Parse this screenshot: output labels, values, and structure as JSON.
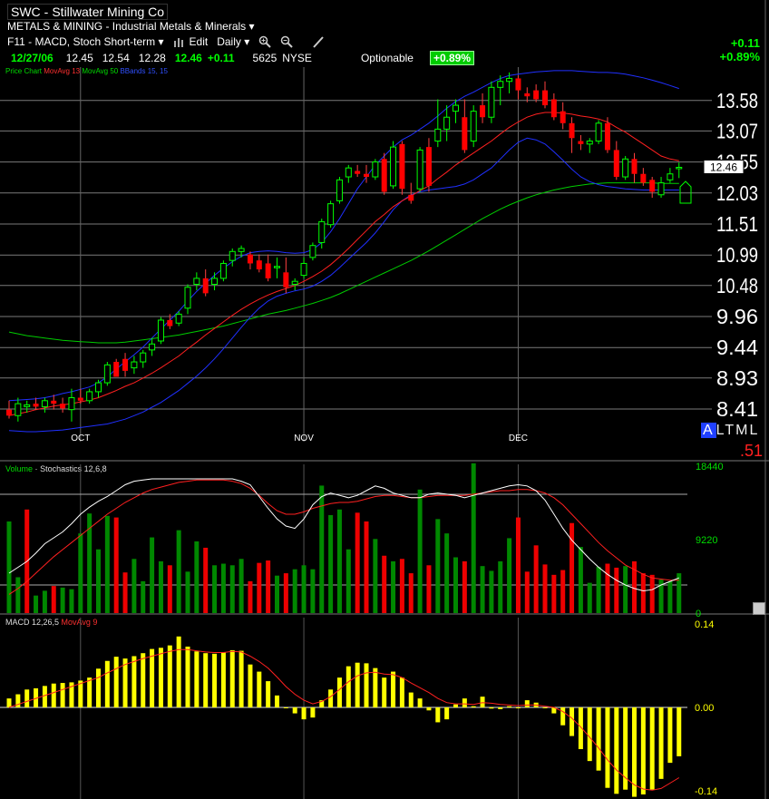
{
  "header": {
    "symbol": "SWC",
    "dash": "-",
    "company": "Stillwater Mining Co",
    "industry": "METALS & MINING - Industrial Metals & Minerals",
    "layout_name": "F11 - MACD, Stoch Short-term",
    "edit_label": "Edit",
    "period_label": "Daily",
    "date": "12/27/06",
    "open": "12.45",
    "high": "12.54",
    "low": "12.28",
    "last": "12.46",
    "change": "+0.11",
    "volume": "5625",
    "exchange": "NYSE",
    "optionable": "Optionable",
    "pct_badge": "+0.89%",
    "change_right": "+0.11",
    "pct_right": "+0.89%"
  },
  "legends": {
    "price_chart": "Price Chart",
    "ma13": "MovAvg 13",
    "ma50": "MovAvg 50",
    "bbands": "BBands 15, 15",
    "volume": "Volume",
    "stochastics": "Stochastics 12,6,8",
    "macd": "MACD 12,26,5",
    "macd_ma": "MovAvg 9"
  },
  "altml": {
    "a": "A",
    "rest": "LTML",
    "value": ".51"
  },
  "colors": {
    "up": "#00ff00",
    "down": "#ff0000",
    "ma13": "#ff2020",
    "ma50": "#00cc00",
    "bb": "#2030ff",
    "vol_up": "#008800",
    "vol_down": "#ee0000",
    "macd": "#ffff00"
  },
  "icons": [
    "chart-bars-icon",
    "zoom-in-icon",
    "zoom-out-icon",
    "pencil-icon",
    "arrow-down-icon"
  ],
  "chart_data": [
    {
      "type": "candlestick",
      "title": "Price Chart",
      "y_ticks": [
        "13.58",
        "13.07",
        "12.55",
        "12.03",
        "11.51",
        "10.99",
        "10.48",
        "9.96",
        "9.44",
        "8.93",
        "8.41"
      ],
      "ylim": [
        8.0,
        14.2
      ],
      "x_labels": [
        "OCT",
        "NOV",
        "DEC"
      ],
      "last_price_label": "12.46",
      "ohlc": [
        [
          8.4,
          8.55,
          8.25,
          8.3
        ],
        [
          8.3,
          8.6,
          8.2,
          8.5
        ],
        [
          8.45,
          8.55,
          8.35,
          8.48
        ],
        [
          8.5,
          8.6,
          8.4,
          8.45
        ],
        [
          8.45,
          8.6,
          8.35,
          8.55
        ],
        [
          8.55,
          8.65,
          8.4,
          8.5
        ],
        [
          8.5,
          8.6,
          8.35,
          8.42
        ],
        [
          8.4,
          8.75,
          8.2,
          8.6
        ],
        [
          8.6,
          8.75,
          8.5,
          8.55
        ],
        [
          8.55,
          8.75,
          8.5,
          8.7
        ],
        [
          8.7,
          8.9,
          8.6,
          8.85
        ],
        [
          8.85,
          9.2,
          8.8,
          9.15
        ],
        [
          9.2,
          9.25,
          9.0,
          8.95
        ],
        [
          9.25,
          9.35,
          8.95,
          9.05
        ],
        [
          9.1,
          9.3,
          9.0,
          9.2
        ],
        [
          9.2,
          9.4,
          9.1,
          9.35
        ],
        [
          9.4,
          9.6,
          9.3,
          9.5
        ],
        [
          9.55,
          9.95,
          9.5,
          9.9
        ],
        [
          9.9,
          10.0,
          9.75,
          9.8
        ],
        [
          9.85,
          10.05,
          9.8,
          10.0
        ],
        [
          10.1,
          10.5,
          10.0,
          10.45
        ],
        [
          10.5,
          10.7,
          10.4,
          10.6
        ],
        [
          10.6,
          10.75,
          10.3,
          10.35
        ],
        [
          10.5,
          10.7,
          10.4,
          10.6
        ],
        [
          10.6,
          10.9,
          10.55,
          10.85
        ],
        [
          10.9,
          11.1,
          10.8,
          11.05
        ],
        [
          11.05,
          11.15,
          10.95,
          11.1
        ],
        [
          11.0,
          11.05,
          10.75,
          10.85
        ],
        [
          10.9,
          11.0,
          10.7,
          10.75
        ],
        [
          10.85,
          11.0,
          10.55,
          10.6
        ],
        [
          10.8,
          10.95,
          10.6,
          10.8
        ],
        [
          10.7,
          10.95,
          10.35,
          10.45
        ],
        [
          10.5,
          10.6,
          10.4,
          10.55
        ],
        [
          10.65,
          10.95,
          10.6,
          10.85
        ],
        [
          10.95,
          11.2,
          10.9,
          11.15
        ],
        [
          11.2,
          11.6,
          11.1,
          11.55
        ],
        [
          11.5,
          11.9,
          11.45,
          11.85
        ],
        [
          11.9,
          12.3,
          11.85,
          12.25
        ],
        [
          12.3,
          12.5,
          12.2,
          12.45
        ],
        [
          12.4,
          12.5,
          12.3,
          12.35
        ],
        [
          12.35,
          12.5,
          12.2,
          12.3
        ],
        [
          12.3,
          12.6,
          12.25,
          12.55
        ],
        [
          12.6,
          12.7,
          12.0,
          12.05
        ],
        [
          12.15,
          12.9,
          12.1,
          12.8
        ],
        [
          12.85,
          12.9,
          12.0,
          12.1
        ],
        [
          12.0,
          12.2,
          11.85,
          11.9
        ],
        [
          12.1,
          12.8,
          12.05,
          12.75
        ],
        [
          12.8,
          12.95,
          12.05,
          12.15
        ],
        [
          12.9,
          13.6,
          12.8,
          13.1
        ],
        [
          13.1,
          13.5,
          12.9,
          13.3
        ],
        [
          13.4,
          13.6,
          13.2,
          13.5
        ],
        [
          13.3,
          13.6,
          12.7,
          12.75
        ],
        [
          12.9,
          13.5,
          12.8,
          13.4
        ],
        [
          13.5,
          13.7,
          13.2,
          13.3
        ],
        [
          13.3,
          13.9,
          13.2,
          13.8
        ],
        [
          13.8,
          14.0,
          13.5,
          13.9
        ],
        [
          13.9,
          14.05,
          13.7,
          13.95
        ],
        [
          13.95,
          14.0,
          13.6,
          13.75
        ],
        [
          13.7,
          13.8,
          13.55,
          13.65
        ],
        [
          13.75,
          13.85,
          13.55,
          13.6
        ],
        [
          13.75,
          13.9,
          13.45,
          13.5
        ],
        [
          13.6,
          13.7,
          13.25,
          13.3
        ],
        [
          13.4,
          13.55,
          13.1,
          13.2
        ],
        [
          13.2,
          13.3,
          12.7,
          12.95
        ],
        [
          12.9,
          13.0,
          12.75,
          12.85
        ],
        [
          12.85,
          12.95,
          12.7,
          12.9
        ],
        [
          12.9,
          13.25,
          12.85,
          13.2
        ],
        [
          13.2,
          13.3,
          12.7,
          12.75
        ],
        [
          12.75,
          12.9,
          12.25,
          12.3
        ],
        [
          12.3,
          12.65,
          12.25,
          12.6
        ],
        [
          12.6,
          12.7,
          12.2,
          12.35
        ],
        [
          12.35,
          12.45,
          12.15,
          12.2
        ],
        [
          12.25,
          12.3,
          11.95,
          12.05
        ],
        [
          12.0,
          12.3,
          11.95,
          12.2
        ],
        [
          12.25,
          12.45,
          12.2,
          12.35
        ],
        [
          12.45,
          12.54,
          12.28,
          12.46
        ]
      ],
      "ma13": [
        8.3,
        8.33,
        8.36,
        8.4,
        8.43,
        8.46,
        8.48,
        8.5,
        8.53,
        8.56,
        8.6,
        8.66,
        8.72,
        8.79,
        8.85,
        8.93,
        9.01,
        9.1,
        9.2,
        9.3,
        9.42,
        9.53,
        9.65,
        9.76,
        9.87,
        9.98,
        10.08,
        10.17,
        10.25,
        10.32,
        10.38,
        10.43,
        10.48,
        10.55,
        10.63,
        10.72,
        10.83,
        10.96,
        11.1,
        11.25,
        11.4,
        11.55,
        11.67,
        11.8,
        11.9,
        11.98,
        12.07,
        12.15,
        12.27,
        12.38,
        12.5,
        12.6,
        12.7,
        12.8,
        12.9,
        13.02,
        13.13,
        13.22,
        13.3,
        13.35,
        13.38,
        13.38,
        13.37,
        13.35,
        13.32,
        13.3,
        13.27,
        13.22,
        13.13,
        13.05,
        12.95,
        12.85,
        12.75,
        12.65,
        12.6,
        12.57
      ],
      "ma50": [
        9.7,
        9.67,
        9.64,
        9.62,
        9.6,
        9.58,
        9.56,
        9.55,
        9.54,
        9.53,
        9.52,
        9.52,
        9.52,
        9.53,
        9.55,
        9.57,
        9.59,
        9.61,
        9.63,
        9.65,
        9.68,
        9.71,
        9.74,
        9.77,
        9.8,
        9.84,
        9.88,
        9.92,
        9.96,
        10.0,
        10.03,
        10.06,
        10.1,
        10.14,
        10.18,
        10.23,
        10.28,
        10.34,
        10.41,
        10.48,
        10.55,
        10.62,
        10.69,
        10.76,
        10.83,
        10.9,
        10.98,
        11.06,
        11.15,
        11.24,
        11.33,
        11.42,
        11.51,
        11.6,
        11.68,
        11.76,
        11.83,
        11.89,
        11.95,
        12.0,
        12.04,
        12.08,
        12.11,
        12.14,
        12.16,
        12.18,
        12.19,
        12.2,
        12.2,
        12.2,
        12.2,
        12.2,
        12.2,
        12.19,
        12.19,
        12.19
      ],
      "bb_upper": [
        8.55,
        8.56,
        8.57,
        8.58,
        8.6,
        8.63,
        8.67,
        8.7,
        8.74,
        8.78,
        8.85,
        8.95,
        9.08,
        9.2,
        9.32,
        9.45,
        9.6,
        9.75,
        9.9,
        10.05,
        10.22,
        10.38,
        10.52,
        10.65,
        10.77,
        10.88,
        10.97,
        11.03,
        11.05,
        11.06,
        11.05,
        11.03,
        11.02,
        11.03,
        11.08,
        11.2,
        11.38,
        11.6,
        11.85,
        12.1,
        12.3,
        12.5,
        12.65,
        12.8,
        12.92,
        13.0,
        13.1,
        13.2,
        13.32,
        13.45,
        13.56,
        13.65,
        13.72,
        13.8,
        13.88,
        13.95,
        14.0,
        14.02,
        14.04,
        14.06,
        14.07,
        14.08,
        14.08,
        14.08,
        14.07,
        14.06,
        14.05,
        14.05,
        14.04,
        14.02,
        13.99,
        13.96,
        13.92,
        13.88,
        13.83,
        13.78
      ],
      "bb_lower": [
        8.05,
        8.04,
        8.03,
        8.03,
        8.04,
        8.05,
        8.06,
        8.08,
        8.1,
        8.12,
        8.14,
        8.16,
        8.2,
        8.24,
        8.3,
        8.36,
        8.44,
        8.52,
        8.62,
        8.72,
        8.84,
        8.96,
        9.1,
        9.25,
        9.42,
        9.6,
        9.78,
        9.95,
        10.1,
        10.22,
        10.3,
        10.35,
        10.39,
        10.42,
        10.47,
        10.55,
        10.65,
        10.78,
        10.92,
        11.06,
        11.2,
        11.36,
        11.55,
        11.75,
        11.9,
        12.0,
        12.05,
        12.08,
        12.1,
        12.12,
        12.14,
        12.18,
        12.25,
        12.35,
        12.45,
        12.6,
        12.75,
        12.88,
        12.95,
        12.92,
        12.85,
        12.72,
        12.58,
        12.43,
        12.3,
        12.22,
        12.17,
        12.14,
        12.12,
        12.1,
        12.09,
        12.08,
        12.08,
        12.08,
        12.08,
        12.08
      ]
    },
    {
      "type": "bar",
      "title": "Volume",
      "y_ticks": [
        "18440",
        "9220",
        "0"
      ],
      "ylim": [
        0,
        18440
      ],
      "values": [
        11500,
        4500,
        13000,
        2200,
        2800,
        3400,
        3200,
        3000,
        10000,
        12500,
        8000,
        12200,
        12000,
        5100,
        6800,
        4000,
        9500,
        6500,
        6000,
        10400,
        5200,
        9000,
        8200,
        6000,
        6200,
        6000,
        6800,
        4000,
        6300,
        6600,
        4700,
        5000,
        5500,
        6000,
        5500,
        16000,
        12300,
        13000,
        8000,
        12600,
        11500,
        9300,
        7200,
        6500,
        6800,
        5000,
        15500,
        6000,
        11800,
        10000,
        7000,
        6500,
        18800,
        5900,
        5300,
        6500,
        9400,
        12000,
        5200,
        8500,
        6100,
        4800,
        5400,
        11300,
        8300,
        3800,
        5800,
        6200,
        5700,
        5900,
        6500,
        5000,
        4800,
        4200,
        4000,
        5000
      ],
      "up": [
        true,
        true,
        false,
        true,
        true,
        false,
        true,
        true,
        true,
        true,
        true,
        true,
        false,
        false,
        true,
        true,
        true,
        true,
        false,
        true,
        true,
        true,
        false,
        true,
        true,
        true,
        true,
        false,
        false,
        false,
        true,
        false,
        true,
        true,
        true,
        true,
        true,
        true,
        true,
        false,
        false,
        true,
        false,
        true,
        false,
        false,
        true,
        false,
        true,
        true,
        true,
        false,
        true,
        true,
        true,
        true,
        true,
        false,
        false,
        false,
        false,
        false,
        false,
        false,
        true,
        true,
        true,
        false,
        false,
        true,
        false,
        false,
        false,
        true,
        true,
        true
      ],
      "stoch_k": [
        20,
        25,
        30,
        37,
        45,
        50,
        55,
        62,
        70,
        76,
        81,
        85,
        90,
        95,
        98,
        99,
        100,
        100,
        100,
        100,
        100,
        100,
        100,
        100,
        100,
        100,
        98,
        95,
        85,
        75,
        66,
        60,
        58,
        66,
        78,
        85,
        88,
        86,
        84,
        86,
        90,
        94,
        92,
        88,
        86,
        84,
        84,
        87,
        88,
        87,
        86,
        84,
        86,
        88,
        90,
        92,
        94,
        95,
        94,
        90,
        82,
        70,
        58,
        48,
        40,
        32,
        25,
        19,
        14,
        10,
        7,
        5,
        6,
        10,
        13,
        16
      ],
      "stoch_d": [
        2,
        7,
        13,
        20,
        27,
        34,
        40,
        46,
        52,
        58,
        64,
        70,
        75,
        80,
        84,
        88,
        91,
        93,
        95,
        97,
        98,
        99,
        99,
        99,
        99,
        98,
        96,
        92,
        86,
        79,
        73,
        70,
        70,
        72,
        75,
        77,
        79,
        80,
        80,
        81,
        83,
        85,
        86,
        86,
        85,
        84,
        84,
        85,
        86,
        86,
        86,
        86,
        87,
        88,
        89,
        90,
        90,
        91,
        91,
        90,
        88,
        84,
        78,
        70,
        62,
        54,
        46,
        39,
        33,
        27,
        23,
        19,
        16,
        15,
        14,
        14
      ]
    },
    {
      "type": "bar",
      "title": "MACD",
      "y_ticks": [
        "0.14",
        "0.00",
        "-0.14"
      ],
      "ylim": [
        -0.15,
        0.15
      ],
      "values": [
        0.015,
        0.022,
        0.03,
        0.032,
        0.036,
        0.04,
        0.041,
        0.042,
        0.045,
        0.05,
        0.065,
        0.078,
        0.085,
        0.082,
        0.086,
        0.091,
        0.098,
        0.1,
        0.104,
        0.119,
        0.102,
        0.094,
        0.091,
        0.09,
        0.092,
        0.096,
        0.095,
        0.072,
        0.06,
        0.044,
        0.02,
        0.0,
        -0.01,
        -0.02,
        -0.017,
        0.012,
        0.03,
        0.05,
        0.069,
        0.075,
        0.074,
        0.066,
        0.05,
        0.06,
        0.05,
        0.025,
        0.015,
        -0.005,
        -0.025,
        -0.02,
        0.005,
        0.015,
        0.002,
        0.018,
        -0.002,
        -0.003,
        0.002,
        0.0,
        0.012,
        0.008,
        0.0,
        -0.01,
        -0.03,
        -0.048,
        -0.07,
        -0.09,
        -0.106,
        -0.135,
        -0.145,
        -0.138,
        -0.15,
        -0.146,
        -0.138,
        -0.12,
        -0.093,
        -0.082
      ],
      "signal": [
        0.0,
        0.005,
        0.01,
        0.015,
        0.02,
        0.025,
        0.03,
        0.035,
        0.04,
        0.045,
        0.05,
        0.058,
        0.065,
        0.072,
        0.077,
        0.082,
        0.086,
        0.09,
        0.094,
        0.097,
        0.097,
        0.095,
        0.093,
        0.092,
        0.092,
        0.094,
        0.093,
        0.086,
        0.077,
        0.066,
        0.051,
        0.035,
        0.022,
        0.012,
        0.006,
        0.01,
        0.018,
        0.03,
        0.043,
        0.053,
        0.058,
        0.059,
        0.056,
        0.055,
        0.05,
        0.041,
        0.033,
        0.025,
        0.015,
        0.008,
        0.006,
        0.006,
        0.005,
        0.008,
        0.007,
        0.005,
        0.004,
        0.003,
        0.004,
        0.004,
        0.002,
        0.0,
        -0.007,
        -0.018,
        -0.033,
        -0.05,
        -0.068,
        -0.088,
        -0.105,
        -0.118,
        -0.13,
        -0.137,
        -0.139,
        -0.136,
        -0.127,
        -0.118
      ]
    }
  ]
}
